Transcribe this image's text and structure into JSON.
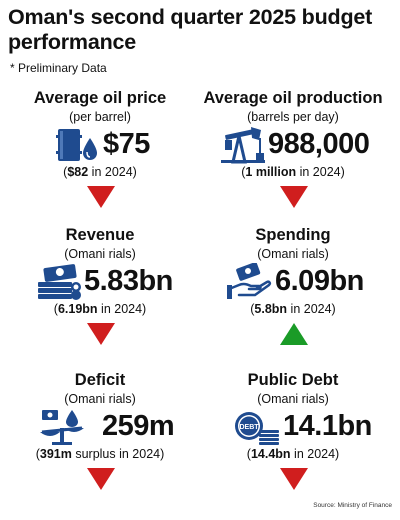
{
  "title": "Oman's second quarter 2025 budget performance",
  "subtitle": "* Preliminary Data",
  "source": "Source: Ministry of Finance",
  "colors": {
    "down": "#d01e1e",
    "up": "#1a9b27",
    "icon": "#1f4b8f"
  },
  "metrics": [
    {
      "heading": "Average oil price",
      "unit": "(per barrel)",
      "value": "$75",
      "prior_value": "$82",
      "prior_suffix": " in 2024)",
      "direction": "down",
      "icon": "oil-barrel-drop-icon"
    },
    {
      "heading": "Average oil production",
      "unit": "(barrels per day)",
      "value": "988,000",
      "prior_value": "1 million",
      "prior_suffix": " in 2024)",
      "direction": "down",
      "icon": "oil-pump-jack-icon"
    },
    {
      "heading": "Revenue",
      "unit": "(Omani rials)",
      "value": "5.83bn",
      "prior_value": "6.19bn",
      "prior_suffix": " in 2024)",
      "direction": "down",
      "icon": "money-stack-icon"
    },
    {
      "heading": "Spending",
      "unit": "(Omani rials)",
      "value": "6.09bn",
      "prior_value": "5.8bn",
      "prior_suffix": " in 2024)",
      "direction": "up",
      "icon": "hand-money-icon"
    },
    {
      "heading": "Deficit",
      "unit": "(Omani rials)",
      "value": "259m",
      "prior_value": "391m",
      "prior_suffix": " surplus in 2024)",
      "direction": "down",
      "icon": "scale-balance-icon"
    },
    {
      "heading": "Public Debt",
      "unit": "(Omani rials)",
      "value": "14.1bn",
      "prior_value": "14.4bn",
      "prior_suffix": " in 2024)",
      "direction": "down",
      "icon": "debt-coins-icon"
    }
  ]
}
